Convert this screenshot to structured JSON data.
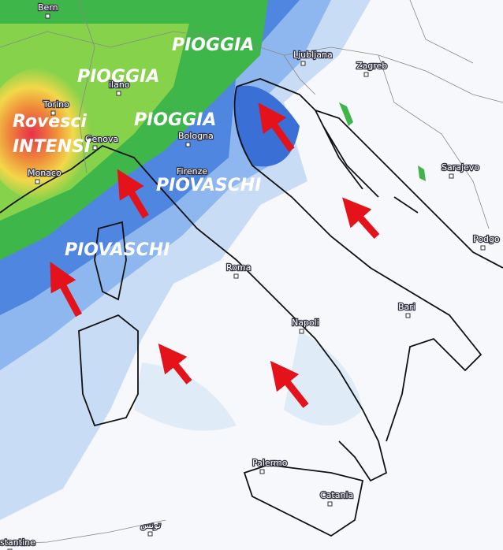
{
  "map": {
    "rain_labels": [
      "PIOGGIA",
      "PIOGGIA",
      "PIOGGIA",
      "Rovesci",
      "INTENSI",
      "PIOVASCHI",
      "PIOVASCHI"
    ],
    "cities": [
      "Bern",
      "Torino",
      "ilano",
      "Genova",
      "Monaco",
      "Bologna",
      "Firenze",
      "Roma",
      "Napoli",
      "Bari",
      "Palermo",
      "Catania",
      "Ljubljana",
      "Zagreb",
      "Sarajevo",
      "Podgo",
      "stantine",
      "تونس"
    ]
  }
}
